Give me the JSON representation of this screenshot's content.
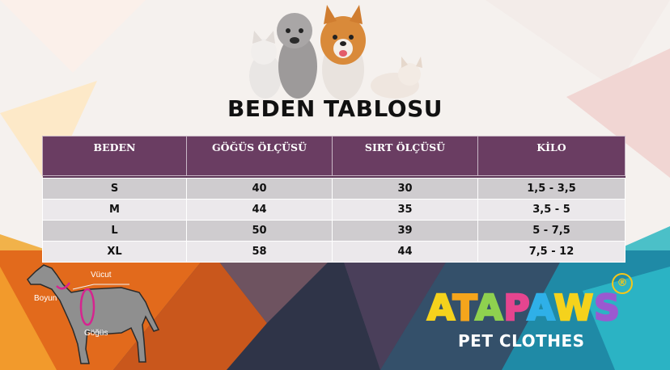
{
  "title": "BEDEN TABLOSU",
  "table": {
    "headers": [
      "BEDEN",
      "GÖĞÜS ÖLÇÜSÜ",
      "SIRT ÖLÇÜSÜ",
      "KİLO"
    ],
    "rows": [
      [
        "S",
        "40",
        "30",
        "1,5 - 3,5"
      ],
      [
        "M",
        "44",
        "35",
        "3,5 - 5"
      ],
      [
        "L",
        "50",
        "39",
        "5 - 7,5"
      ],
      [
        "XL",
        "58",
        "44",
        "7,5 - 12"
      ]
    ]
  },
  "diagram": {
    "labels": [
      "Vücut",
      "Boyun",
      "Göğüs"
    ]
  },
  "brand": {
    "name": "ATAPAWS",
    "letters": [
      "A",
      "T",
      "A",
      "P",
      "A",
      "W",
      "S"
    ],
    "letter_colors": [
      "#f5d21c",
      "#f5a51c",
      "#8fd14f",
      "#e5458f",
      "#2fb0e8",
      "#f5d21c",
      "#9b59d0"
    ],
    "registered": "®",
    "tagline": "PET CLOTHES"
  },
  "colors": {
    "header_bg": "#6a3d62",
    "row_odd": "#cfcccf",
    "row_even": "#ebe8eb"
  }
}
